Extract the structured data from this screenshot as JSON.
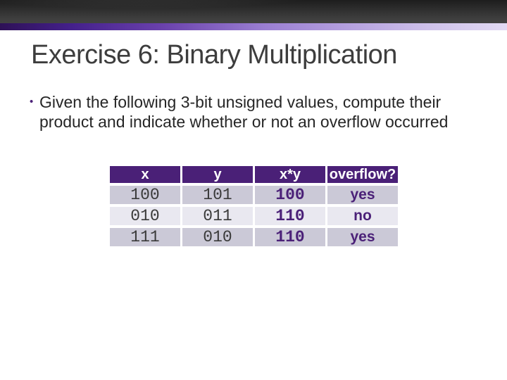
{
  "slide": {
    "title": "Exercise 6: Binary Multiplication",
    "bullet": {
      "marker": "•",
      "text": "Given the following 3-bit unsigned values, compute their product and indicate whether or not an overflow occurred"
    },
    "table": {
      "headers": [
        "x",
        "y",
        "x*y",
        "overflow?"
      ],
      "rows": [
        {
          "x": "100",
          "y": "101",
          "product": "100",
          "overflow": "yes"
        },
        {
          "x": "010",
          "y": "011",
          "product": "110",
          "overflow": "no"
        },
        {
          "x": "111",
          "y": "010",
          "product": "110",
          "overflow": "yes"
        }
      ]
    },
    "colors": {
      "header_bg": "#4a2077",
      "row_shaded_bg": "#cbc9d7",
      "row_light_bg": "#e9e8f0",
      "accent_purple": "#4b2178",
      "title_text": "#3d3d3d",
      "body_text": "#262626",
      "mono_text": "#3a3a3a",
      "topbar_dark": "#2e2e2e",
      "stripe_left": "#2e1156",
      "stripe_right": "#e2daf4"
    }
  }
}
